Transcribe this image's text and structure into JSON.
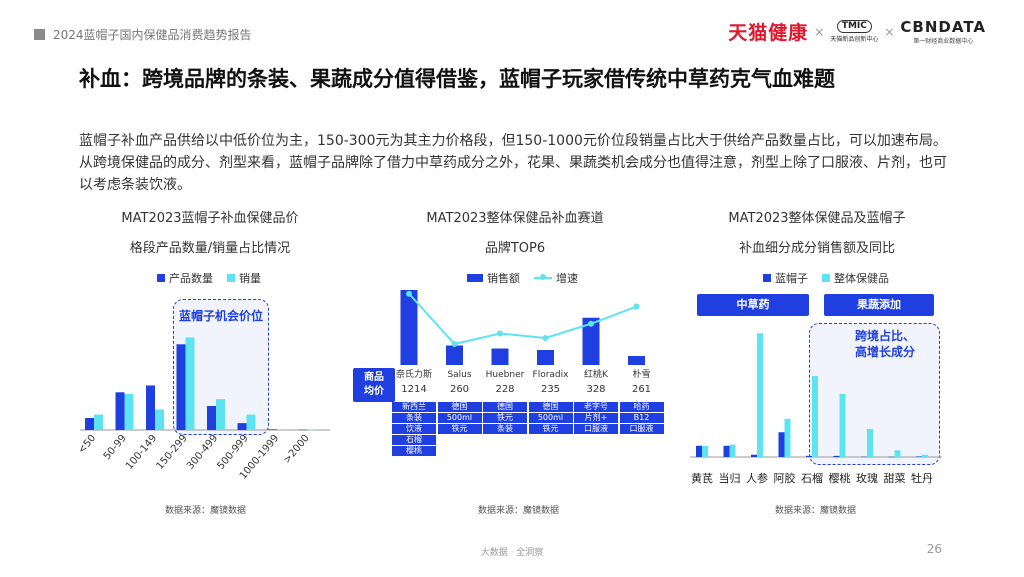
{
  "header": {
    "report_title": "2024蓝帽子国内保健品消费趋势报告",
    "logo_tmall": "天猫健康",
    "logo_tmic_badge": "TMIC",
    "logo_tmic_sub": "天猫新品创新中心",
    "logo_cbn": "CBNDATA",
    "logo_cbn_sub": "第一财经商业数据中心",
    "sep": "×"
  },
  "title": "补血：跨境品牌的条装、果蔬成分值得借鉴，蓝帽子玩家借传统中草药克气血难题",
  "intro": "蓝帽子补血产品供给以中低价位为主，150-300元为其主力价格段，但150-1000元价位段销量占比大于供给产品数量占比，可以加速布局。从跨境保健品的成分、剂型来看，蓝帽子品牌除了借力中草药成分之外，花果、果蔬类机会成分也值得注意，剂型上除了口服液、片剂，也可以考虑条装饮液。",
  "colors": {
    "primary": "#1f3fe0",
    "secondary": "#5ee3f0",
    "line": "#5ee3f0"
  },
  "chart1": {
    "title_line1": "MAT2023蓝帽子补血保健品价",
    "title_line2": "格段产品数量/销量占比情况",
    "highlight_label": "蓝帽子机会价位",
    "source": "数据来源：魔镜数据"
  },
  "chart2": {
    "title_line1": "MAT2023整体保健品补血赛道",
    "title_line2": "品牌TOP6",
    "row_header": "商品\n均价",
    "source": "数据来源：魔镜数据",
    "columns": [
      {
        "brand": "奈氏力斯",
        "price": "1214",
        "tags": [
          "新西兰",
          "条装",
          "饮液",
          "石榴",
          "樱桃"
        ]
      },
      {
        "brand": "Salus",
        "price": "260",
        "tags": [
          "德国",
          "500ml",
          "铁元"
        ]
      },
      {
        "brand": "Huebner",
        "price": "228",
        "tags": [
          "德国",
          "铁元",
          "条装"
        ]
      },
      {
        "brand": "Floradix",
        "price": "235",
        "tags": [
          "德国",
          "500ml",
          "铁元"
        ]
      },
      {
        "brand": "红桃K",
        "price": "328",
        "tags": [
          "老字号",
          "片剂+",
          "口服液"
        ]
      },
      {
        "brand": "朴雪",
        "price": "261",
        "tags": [
          "哈药",
          "B12",
          "口服液"
        ]
      }
    ]
  },
  "chart3": {
    "title_line1": "MAT2023整体保健品及蓝帽子",
    "title_line2": "补血细分成分销售额及同比",
    "group_herbal": "中草药",
    "group_fruit": "果蔬添加",
    "highlight_label": "跨境占比、\n高增长成分",
    "source": "数据来源：魔镜数据"
  },
  "footer": {
    "center": "大数据 · 全洞察",
    "page": "26"
  },
  "chart_data": [
    {
      "type": "bar",
      "categories": [
        "<50",
        "50-99",
        "100-149",
        "150-299",
        "300-499",
        "500-999",
        "1000-1999",
        ">2000"
      ],
      "series": [
        {
          "name": "产品数量",
          "values": [
            3.5,
            11,
            13,
            25,
            7,
            2,
            0.2,
            0.1
          ]
        },
        {
          "name": "销量",
          "values": [
            4.5,
            10.5,
            6,
            27,
            9,
            4.5,
            0.2,
            0.1
          ]
        }
      ],
      "ylim": [
        0,
        35
      ]
    },
    {
      "type": "bar",
      "categories": [
        "奈氏力斯",
        "Salus",
        "Huebner",
        "Floradix",
        "红桃K",
        "朴雪"
      ],
      "series": [
        {
          "name": "销售额",
          "values": [
            100,
            26,
            22,
            20,
            63,
            12
          ]
        },
        {
          "name": "增速",
          "type": "line",
          "values": [
            95,
            28,
            42,
            36,
            55,
            78
          ]
        }
      ],
      "ylim": [
        0,
        100
      ]
    },
    {
      "type": "bar",
      "categories": [
        "黄芪",
        "当归",
        "人参",
        "阿胶",
        "石榴",
        "樱桃",
        "玫瑰",
        "甜菜",
        "牡丹"
      ],
      "series": [
        {
          "name": "蓝帽子",
          "values": [
            10,
            10,
            2,
            22,
            1,
            1,
            0.3,
            0.2,
            0.5
          ]
        },
        {
          "name": "整体保健品",
          "values": [
            10,
            11,
            110,
            34,
            72,
            56,
            25,
            6,
            2
          ]
        }
      ],
      "ylim": [
        0,
        120
      ]
    }
  ],
  "legends": {
    "c1": [
      "产品数量",
      "销量"
    ],
    "c2": [
      "销售额",
      "增速"
    ],
    "c3": [
      "蓝帽子",
      "整体保健品"
    ]
  }
}
